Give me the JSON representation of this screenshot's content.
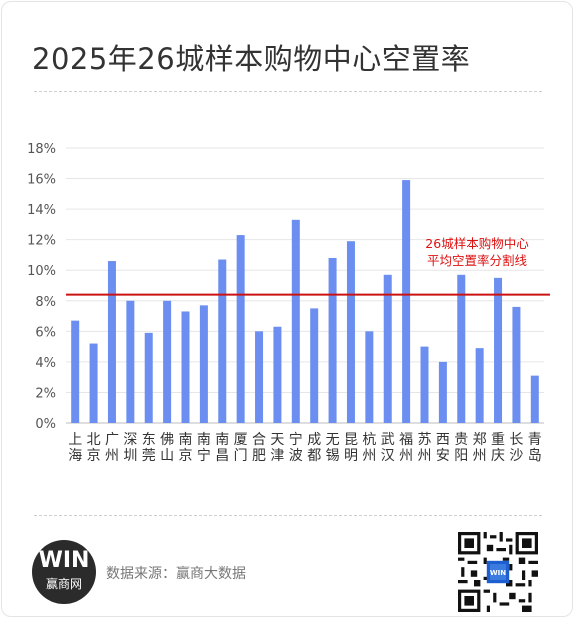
{
  "title": "2025年26城样本购物中心空置率",
  "footer": {
    "logo_mark": "WIN",
    "logo_text": "赢商网",
    "source": "数据来源：赢商大数据"
  },
  "colors": {
    "bar": "#6b8ef0",
    "reference_line": "#cc1111",
    "annotation": "#dd1111",
    "axis_text": "#555555",
    "grid": "#e6e6e6"
  },
  "chart_data": {
    "type": "bar",
    "categories": [
      "上海",
      "北京",
      "广州",
      "深圳",
      "东莞",
      "佛山",
      "南京",
      "南宁",
      "南昌",
      "厦门",
      "合肥",
      "天津",
      "宁波",
      "成都",
      "无锡",
      "昆明",
      "杭州",
      "武汉",
      "福州",
      "苏州",
      "西安",
      "贵阳",
      "郑州",
      "重庆",
      "长沙",
      "青岛"
    ],
    "values": [
      6.7,
      5.2,
      10.6,
      8.0,
      5.9,
      8.0,
      7.3,
      7.7,
      10.7,
      12.3,
      6.0,
      6.3,
      13.3,
      7.5,
      10.8,
      11.9,
      6.0,
      9.7,
      15.9,
      5.0,
      4.0,
      9.7,
      4.9,
      9.5,
      7.6,
      3.1
    ],
    "yticks": [
      "0%",
      "2%",
      "4%",
      "6%",
      "8%",
      "10%",
      "12%",
      "14%",
      "16%",
      "18%"
    ],
    "ylim": [
      0,
      18
    ],
    "grid": true,
    "reference_line": {
      "value": 8.4,
      "label_lines": [
        "26城样本购物中心",
        "平均空置率分割线"
      ]
    }
  }
}
